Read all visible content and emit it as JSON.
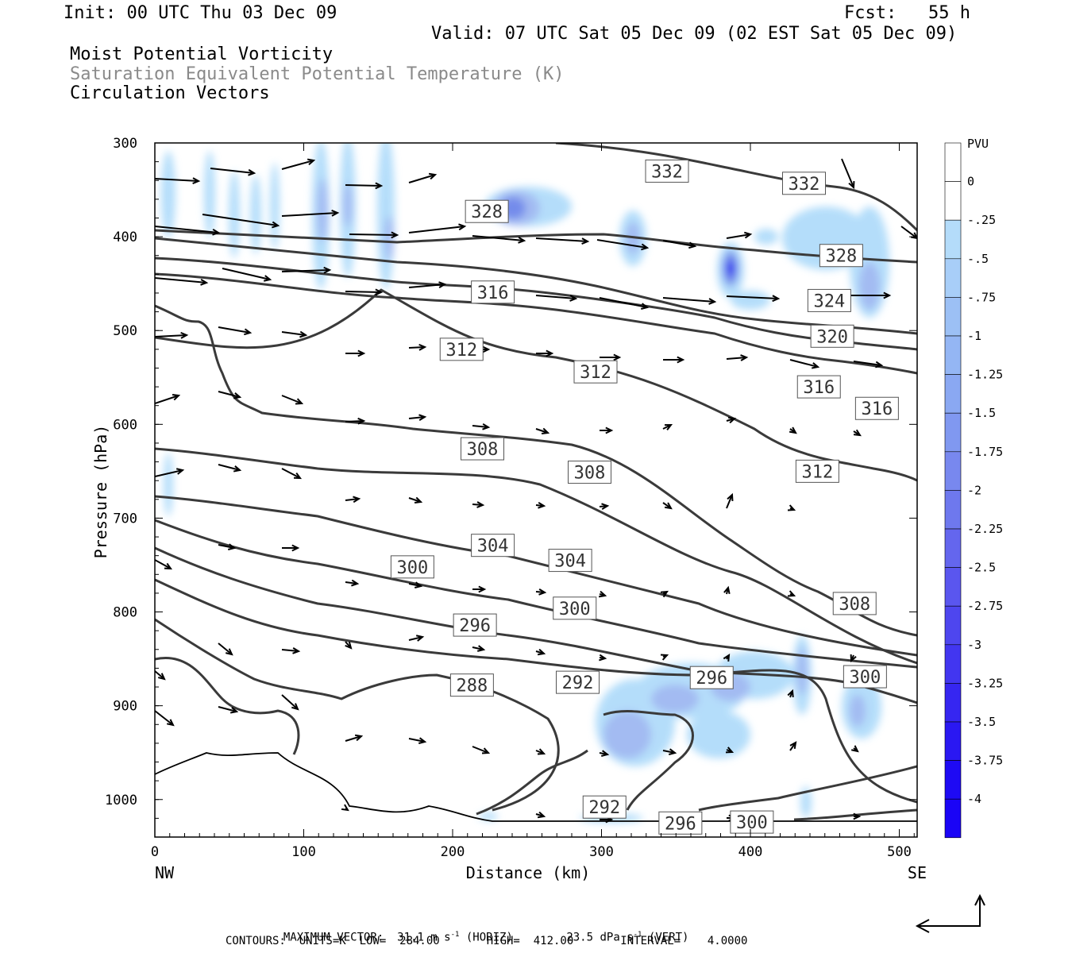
{
  "header": {
    "init": "Init: 00 UTC Thu 03 Dec 09",
    "fcst": "Fcst:   55 h",
    "valid": "Valid: 07 UTC Sat 05 Dec 09 (02 EST Sat 05 Dec 09)",
    "field1": "Moist Potential Vorticity",
    "field2": "Saturation Equivalent Potential Temperature (K)",
    "field3": "Circulation Vectors"
  },
  "colors": {
    "contour": "#3a3a3a",
    "pv_light": "#b0dcfa",
    "pv_mid": "#9fb8f2",
    "pv_dark": "#6d86ea",
    "pv_max": "#2020f0"
  },
  "chart_data": {
    "type": "cross-section",
    "xlabel": "Distance (km)",
    "ylabel": "Pressure (hPa)",
    "x_left_label": "NW",
    "x_right_label": "SE",
    "xlim": [
      0,
      512
    ],
    "ylim": [
      1040,
      300
    ],
    "x_ticks": [
      0,
      100,
      200,
      300,
      400,
      500
    ],
    "y_ticks": [
      300,
      400,
      500,
      600,
      700,
      800,
      900,
      1000
    ],
    "colorbar": {
      "unit": "PVU",
      "levels": [
        "0",
        "-.25",
        "-.5",
        "-.75",
        "-1",
        "-1.25",
        "-1.5",
        "-1.75",
        "-2",
        "-2.25",
        "-2.5",
        "-2.75",
        "-3",
        "-3.25",
        "-3.5",
        "-3.75",
        "-4"
      ],
      "colors": [
        "#ffffff",
        "#ffffff",
        "#b4dcfa",
        "#a8cef8",
        "#9cc0f5",
        "#94b6f4",
        "#8aa8f2",
        "#8098f0",
        "#7888ef",
        "#6e78ee",
        "#6466ee",
        "#5a56ef",
        "#4e46ef",
        "#4236f0",
        "#3626f1",
        "#2a18f2",
        "#1e0af4",
        "#1a04f6"
      ]
    },
    "contour_labels": [
      {
        "text": "332",
        "x": 344,
        "y": 330
      },
      {
        "text": "332",
        "x": 436,
        "y": 343
      },
      {
        "text": "328",
        "x": 223,
        "y": 373
      },
      {
        "text": "328",
        "x": 461,
        "y": 420
      },
      {
        "text": "324",
        "x": 453,
        "y": 468
      },
      {
        "text": "320",
        "x": 455,
        "y": 506
      },
      {
        "text": "316",
        "x": 227,
        "y": 459
      },
      {
        "text": "316",
        "x": 446,
        "y": 560
      },
      {
        "text": "316",
        "x": 485,
        "y": 583
      },
      {
        "text": "312",
        "x": 206,
        "y": 520
      },
      {
        "text": "312",
        "x": 296,
        "y": 544
      },
      {
        "text": "312",
        "x": 445,
        "y": 650
      },
      {
        "text": "308",
        "x": 220,
        "y": 626
      },
      {
        "text": "308",
        "x": 292,
        "y": 651
      },
      {
        "text": "308",
        "x": 470,
        "y": 791
      },
      {
        "text": "304",
        "x": 227,
        "y": 729
      },
      {
        "text": "304",
        "x": 279,
        "y": 745
      },
      {
        "text": "300",
        "x": 173,
        "y": 752
      },
      {
        "text": "300",
        "x": 282,
        "y": 796
      },
      {
        "text": "300",
        "x": 477,
        "y": 869
      },
      {
        "text": "300",
        "x": 401,
        "y": 1024
      },
      {
        "text": "296",
        "x": 215,
        "y": 814
      },
      {
        "text": "296",
        "x": 374,
        "y": 870
      },
      {
        "text": "296",
        "x": 353,
        "y": 1025
      },
      {
        "text": "292",
        "x": 284,
        "y": 875
      },
      {
        "text": "292",
        "x": 302,
        "y": 1008
      },
      {
        "text": "288",
        "x": 213,
        "y": 878
      }
    ],
    "max_vector_label": "MAXIMUM VECTOR:",
    "max_vector_horiz": "31.1 m s",
    "max_vector_horiz_unit": "(HORIZ)",
    "max_vector_vert": "23.5 dPa s",
    "max_vector_vert_unit": "(VERT)",
    "unit_exp": "-1",
    "contours_line": "CONTOURS:  UNITS=K  LOW=  284.00       HIGH=  412.00       INTERVAL=    4.0000"
  }
}
